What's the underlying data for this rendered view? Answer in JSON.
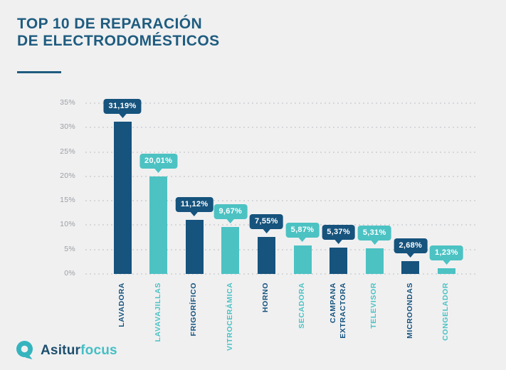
{
  "page": {
    "background_color": "#f0f0f1"
  },
  "header": {
    "title_line1": "TOP 10 DE REPARACIÓN",
    "title_line2": "DE ELECTRODOMÉSTICOS",
    "title_color": "#1f5c7f"
  },
  "footer": {
    "logo": {
      "icon": "asiturfocus-logo-icon",
      "brand_part1": "Asitur",
      "brand_part2": "focus",
      "brand_part1_color": "#1d4e6d",
      "brand_part2_color": "#45bfc4",
      "icon_color": "#35b4be"
    }
  },
  "chart_data": {
    "type": "bar",
    "title": "TOP 10 DE REPARACIÓN DE ELECTRODOMÉSTICOS",
    "categories": [
      "LAVADORA",
      "LAVAVAJILLAS",
      "FRIGORÍFICO",
      "VITROCERÁMICA",
      "HORNO",
      "SECADORA",
      "CAMPANA EXTRACTORA",
      "TELEVISOR",
      "MICROONDAS",
      "CONGELADOR"
    ],
    "values": [
      31.19,
      20.01,
      11.12,
      9.67,
      7.55,
      5.87,
      5.37,
      5.31,
      2.68,
      1.23
    ],
    "value_labels": [
      "31,19%",
      "20,01%",
      "11,12%",
      "9,67%",
      "7,55%",
      "5,87%",
      "5,37%",
      "5,31%",
      "2,68%",
      "1,23%"
    ],
    "xlabel": "",
    "ylabel": "",
    "ylim": [
      0,
      35
    ],
    "ytick_labels": [
      "0%",
      "5%",
      "10%",
      "15%",
      "20%",
      "25%",
      "30%",
      "35%"
    ],
    "grid": "horizontal-dotted",
    "gridline_color": "#d6d7d9",
    "axis_tick_color": "#9b9ea3",
    "legend": "none",
    "bar_palette": [
      "#16537d",
      "#4cc2c3"
    ],
    "value_label_style": "tooltip-bubble-above-bar",
    "category_label_style": "vertical-rotated-matching-bar-color"
  }
}
